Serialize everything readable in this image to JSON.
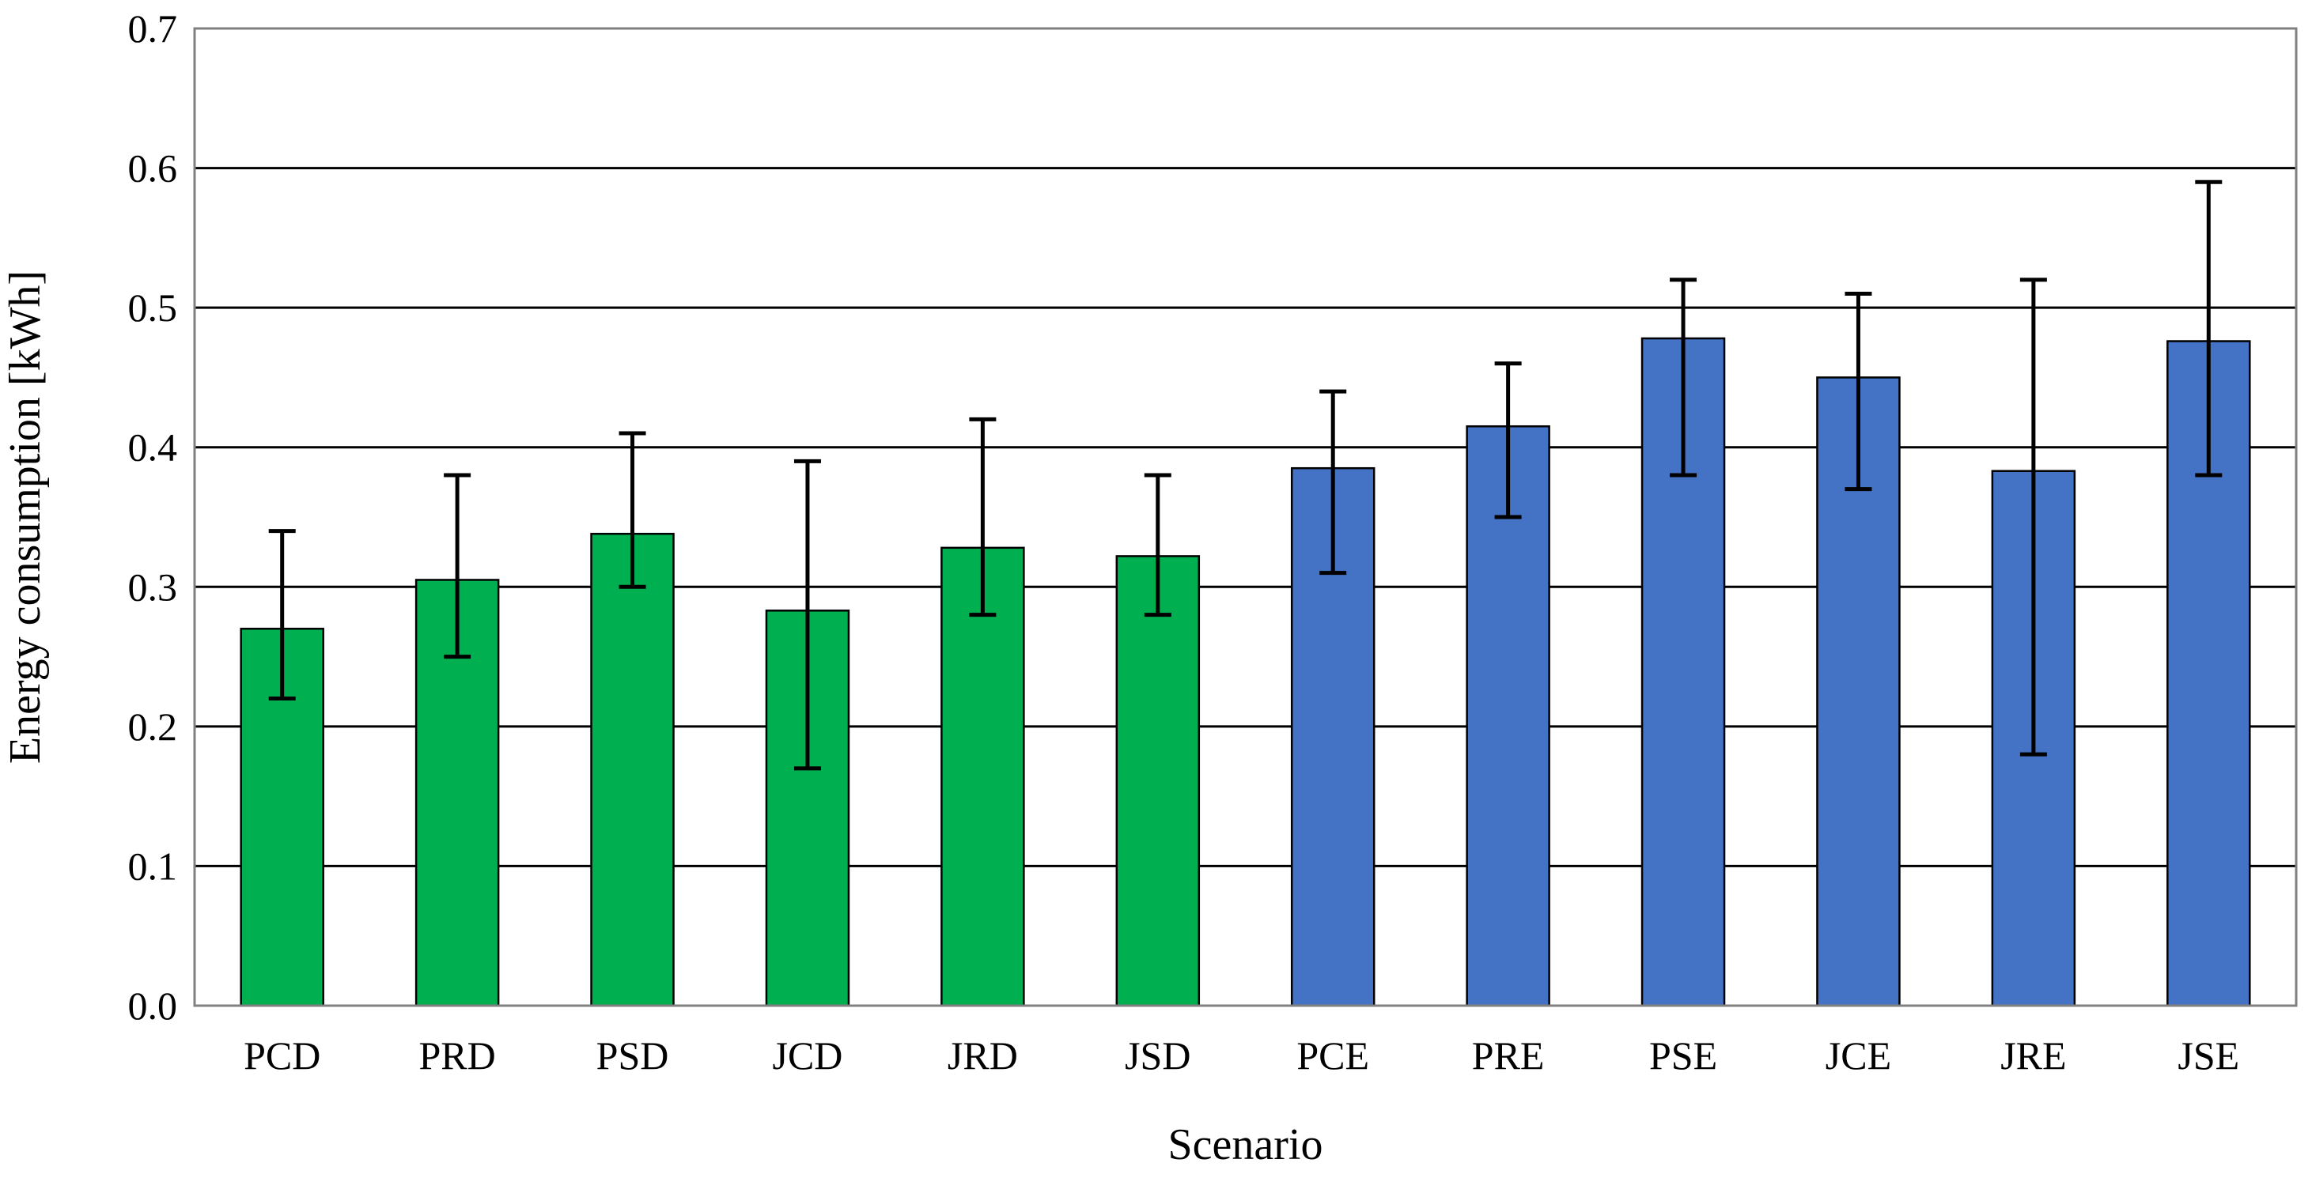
{
  "chart_data": {
    "type": "bar",
    "title": "",
    "xlabel": "Scenario",
    "ylabel": "Energy consumption [kWh]",
    "ylim": [
      0,
      0.7
    ],
    "yticks": [
      "0.0",
      "0.1",
      "0.2",
      "0.3",
      "0.4",
      "0.5",
      "0.6",
      "0.7"
    ],
    "grid": true,
    "legend": "none",
    "categories": [
      "PCD",
      "PRD",
      "PSD",
      "JCD",
      "JRD",
      "JSD",
      "PCE",
      "PRE",
      "PSE",
      "JCE",
      "JRE",
      "JSE"
    ],
    "values": [
      0.27,
      0.305,
      0.338,
      0.283,
      0.328,
      0.322,
      0.385,
      0.415,
      0.478,
      0.45,
      0.383,
      0.476
    ],
    "error_low": [
      0.22,
      0.25,
      0.3,
      0.17,
      0.28,
      0.28,
      0.31,
      0.35,
      0.38,
      0.37,
      0.18,
      0.38
    ],
    "error_high": [
      0.34,
      0.38,
      0.41,
      0.39,
      0.42,
      0.38,
      0.44,
      0.46,
      0.52,
      0.51,
      0.52,
      0.59
    ],
    "bar_colors": [
      "#00b050",
      "#00b050",
      "#00b050",
      "#00b050",
      "#00b050",
      "#00b050",
      "#4472c4",
      "#4472c4",
      "#4472c4",
      "#4472c4",
      "#4472c4",
      "#4472c4"
    ]
  }
}
